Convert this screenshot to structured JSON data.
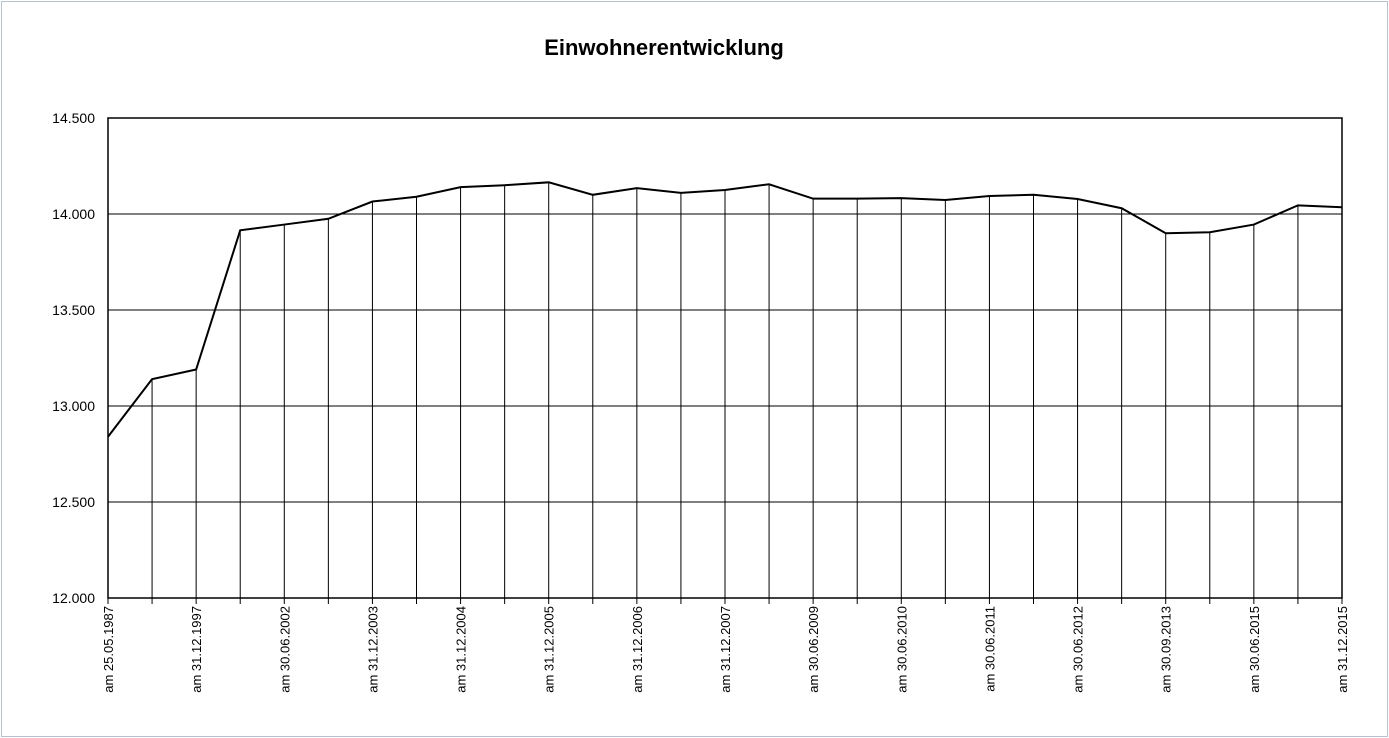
{
  "chart_data": {
    "type": "line",
    "title": "Einwohnerentwicklung",
    "categories": [
      "am 25.05.1987",
      null,
      "am 31.12.1997",
      null,
      "am 30.06.2002",
      null,
      "am 31.12.2003",
      null,
      "am 31.12.2004",
      null,
      "am 31.12.2005",
      null,
      "am 31.12.2006",
      null,
      "am 31.12.2007",
      null,
      "am 30.06.2009",
      null,
      "am 30.06.2010",
      null,
      "am 30.06.2011",
      null,
      "am 30.06.2012",
      null,
      "am 30.09.2013",
      null,
      "am 30.06.2015",
      null,
      "am 31.12.2015"
    ],
    "series": [
      {
        "color": "#000000",
        "values": [
          12840,
          13140,
          13190,
          13915,
          13945,
          13975,
          14065,
          14090,
          14140,
          14150,
          14165,
          14100,
          14135,
          14110,
          14125,
          14155,
          14080,
          14080,
          14083,
          14073,
          14094,
          14100,
          14078,
          14030,
          13900,
          13905,
          13945,
          14045,
          14035
        ]
      }
    ],
    "ylim": [
      12000,
      14500
    ],
    "yticks": [
      {
        "value": 12000,
        "label": "12.000"
      },
      {
        "value": 12500,
        "label": "12.500"
      },
      {
        "value": 13000,
        "label": "13.000"
      },
      {
        "value": 13500,
        "label": "13.500"
      },
      {
        "value": 14000,
        "label": "14.000"
      },
      {
        "value": 14500,
        "label": "14.500"
      }
    ],
    "grid": true,
    "drop_lines": true
  }
}
